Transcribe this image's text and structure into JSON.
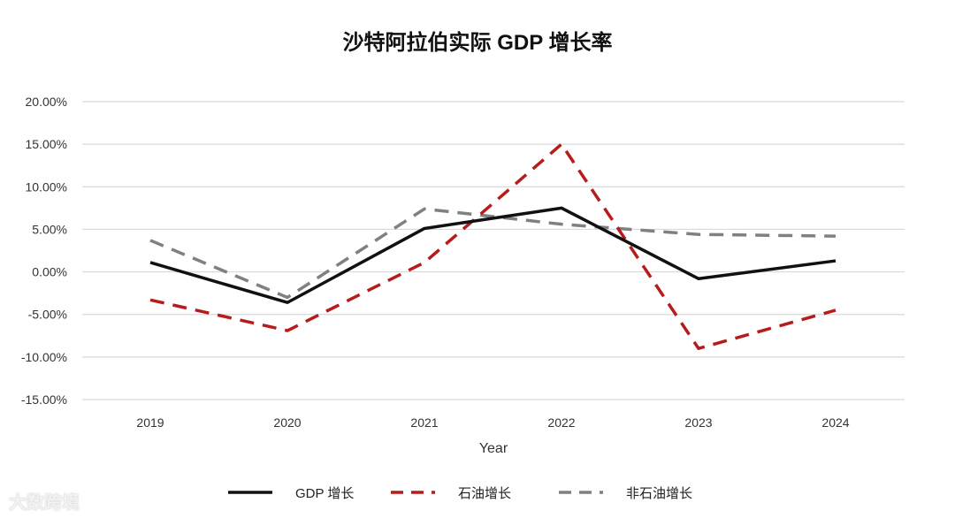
{
  "chart_data": {
    "type": "line",
    "title": "沙特阿拉伯实际 GDP 增长率",
    "xlabel": "Year",
    "ylabel": "",
    "categories": [
      "2019",
      "2020",
      "2021",
      "2022",
      "2023",
      "2024"
    ],
    "ylim": [
      -15,
      20
    ],
    "yticks": [
      20,
      15,
      10,
      5,
      0,
      -5,
      -10,
      -15
    ],
    "ytick_labels": [
      "20.00%",
      "15.00%",
      "10.00%",
      "5.00%",
      "0.00%",
      "-5.00%",
      "-10.00%",
      "-15.00%"
    ],
    "grid": true,
    "legend_position": "bottom",
    "series": [
      {
        "name": "GDP 增长",
        "values": [
          1.1,
          -3.6,
          5.1,
          7.5,
          -0.8,
          1.3
        ],
        "color": "#111111",
        "style": "solid"
      },
      {
        "name": "石油增长",
        "values": [
          -3.3,
          -6.9,
          1.1,
          15.0,
          -9.0,
          -4.5
        ],
        "color": "#b71c1c",
        "style": "dashed"
      },
      {
        "name": "非石油增长",
        "values": [
          3.7,
          -3.0,
          7.4,
          5.6,
          4.4,
          4.2
        ],
        "color": "#808080",
        "style": "dashed"
      }
    ]
  },
  "watermark": "大数跨境"
}
